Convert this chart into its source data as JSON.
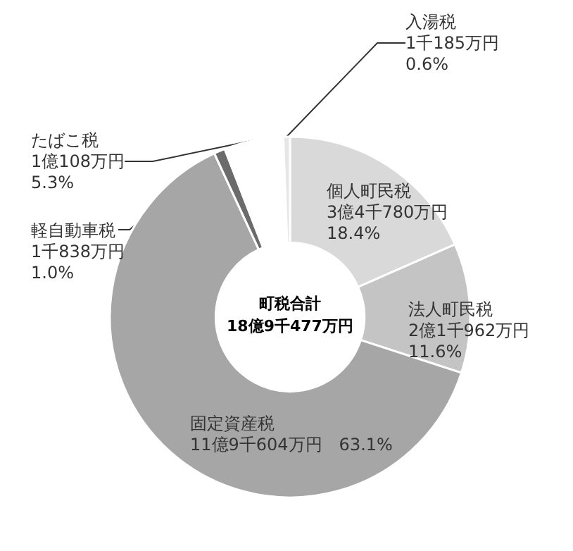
{
  "chart_data": {
    "type": "donut",
    "categories": [
      "個人町民税",
      "法人町民税",
      "固定資産税",
      "軽自動車税",
      "たばこ税",
      "入湯税"
    ],
    "values": [
      18.4,
      11.6,
      63.1,
      1.0,
      5.3,
      0.6
    ],
    "colors": [
      "#d9d9d9",
      "#c4c4c4",
      "#a6a6a6",
      "#6b6b6b",
      "#ffffff",
      "#e6e6e6"
    ],
    "value_labels": [
      "3億4千780万円\n18.4%",
      "2億1千962万円\n11.6%",
      "11億9千604万円　63.1%",
      "1千838万円\n1.0%",
      "1億108万円\n5.3%",
      "1千185万円\n0.6%"
    ],
    "annotations": [
      "町税合計",
      "18億9千477万円"
    ]
  }
}
